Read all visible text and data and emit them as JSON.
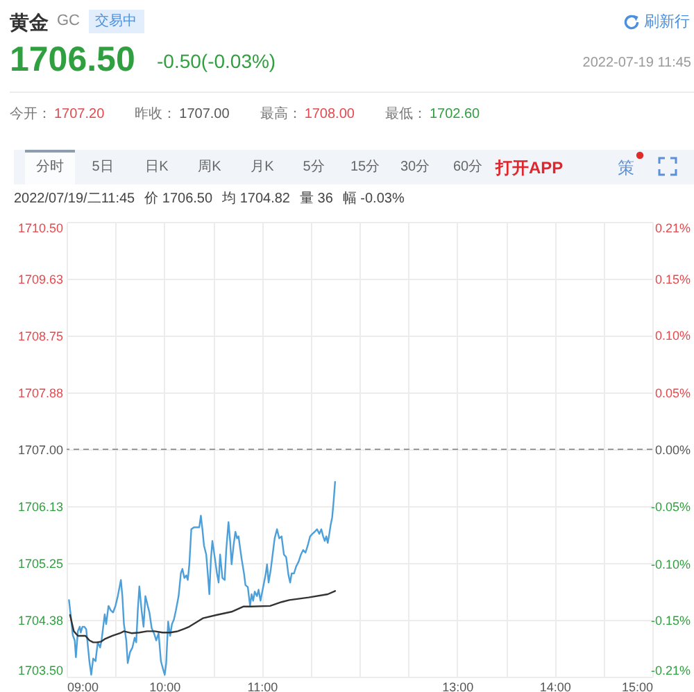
{
  "chart_data": {
    "type": "line",
    "title": "黄金",
    "annotations": [
      "GC",
      "交易中",
      "刷新行",
      "1706.50",
      "-0.50(-0.03%)",
      "2022-07-19 11:45",
      "今开：",
      "1707.20",
      "昨收：",
      "1707.00",
      "最高：",
      "1708.00",
      "最低：",
      "1702.60",
      "分时",
      "5日",
      "日K",
      "周K",
      "月K",
      "5分",
      "15分",
      "30分",
      "60分",
      "打开APP",
      "策",
      "2022/07/19/二11:45",
      "价 1706.50",
      "均 1704.82",
      "量 36",
      "幅 -0.03%"
    ],
    "xlim": [
      9,
      15
    ],
    "xticks": [
      {
        "value": 9,
        "label": "09:00"
      },
      {
        "value": 9.5,
        "label": null
      },
      {
        "value": 10,
        "label": "10:00"
      },
      {
        "value": 10.5,
        "label": null
      },
      {
        "value": 11,
        "label": "11:00"
      },
      {
        "value": 11.5,
        "label": null
      },
      {
        "value": 12,
        "label": null
      },
      {
        "value": 12.5,
        "label": null
      },
      {
        "value": 13,
        "label": "13:00"
      },
      {
        "value": 13.5,
        "label": null
      },
      {
        "value": 14,
        "label": "14:00"
      },
      {
        "value": 14.5,
        "label": null
      },
      {
        "value": 15,
        "label": "15:00"
      }
    ],
    "ylim": [
      1703.5,
      1710.5
    ],
    "yticks": [
      {
        "value": 1710.5,
        "label": "1710.50"
      },
      {
        "value": 1709.625,
        "label": "1709.63"
      },
      1708.75,
      {
        "value": 1707.875,
        "label": "1707.88"
      },
      {
        "value": 1707,
        "label": "1707.00"
      },
      {
        "value": 1706.125,
        "label": "1706.13"
      },
      1705.25,
      {
        "value": 1704.375,
        "label": "1704.38"
      },
      {
        "value": 1703.5,
        "label": "1703.50"
      }
    ],
    "y2lim": [
      -0.205,
      0.205
    ],
    "y2ticks": [
      {
        "value": 0.205,
        "label": "0.21%"
      },
      {
        "value": 0.154,
        "label": "0.15%"
      },
      {
        "value": 0.103,
        "label": "0.10%"
      },
      {
        "value": 0.051,
        "label": "0.05%"
      },
      {
        "value": 0,
        "label": "0.00%"
      },
      {
        "value": -0.051,
        "label": "-0.05%"
      },
      {
        "value": -0.103,
        "label": "-0.10%"
      },
      {
        "value": -0.154,
        "label": "-0.15%"
      },
      {
        "value": -0.205,
        "label": "-0.21%"
      }
    ],
    "ref_lines": [
      {
        "axis": "y2",
        "value": 0,
        "color": "#9a9a9a",
        "line_style": "dashed"
      }
    ],
    "grid": true,
    "series": [
      {
        "color": "#4d9fd9",
        "x": [
          9.024,
          9.044,
          9.063,
          9.083,
          9.095,
          9.115,
          9.134,
          9.145,
          9.162,
          9.181,
          9.201,
          9.233,
          9.252,
          9.272,
          9.296,
          9.319,
          9.343,
          9.358,
          9.39,
          9.405,
          9.429,
          9.453,
          9.476,
          9.5,
          9.524,
          9.556,
          9.571,
          9.587,
          9.611,
          9.626,
          9.65,
          9.674,
          9.697,
          9.713,
          9.729,
          9.745,
          9.768,
          9.788,
          9.807,
          9.831,
          9.848,
          9.871,
          9.895,
          9.918,
          9.942,
          9.966,
          9.989,
          10.005,
          10.02,
          10.04,
          10.06,
          10.079,
          10.099,
          10.119,
          10.147,
          10.17,
          10.186,
          10.206,
          10.226,
          10.241,
          10.257,
          10.277,
          10.304,
          10.359,
          10.375,
          10.391,
          10.407,
          10.43,
          10.446,
          10.462,
          10.478,
          10.493,
          10.517,
          10.54,
          10.557,
          10.572,
          10.596,
          10.619,
          10.635,
          10.658,
          10.675,
          10.69,
          10.71,
          10.729,
          10.746,
          10.761,
          10.777,
          10.793,
          10.817,
          10.832,
          10.856,
          10.879,
          10.895,
          10.911,
          10.927,
          10.95,
          10.966,
          10.986,
          11.013,
          11.037,
          11.053,
          11.069,
          11.092,
          11.116,
          11.131,
          11.155,
          11.178,
          11.202,
          11.226,
          11.249,
          11.273,
          11.29,
          11.305,
          11.329,
          11.352,
          11.376,
          11.4,
          11.423,
          11.447,
          11.47,
          11.494,
          11.518,
          11.541,
          11.565,
          11.589,
          11.609,
          11.628,
          11.644,
          11.66,
          11.675,
          11.691,
          11.705,
          11.72,
          11.735,
          11.75
        ],
        "values": [
          1704.68,
          1704.42,
          1704.14,
          1704.06,
          1703.8,
          1704.2,
          1704.27,
          1704.18,
          1704.27,
          1704.27,
          1704.23,
          1703.74,
          1703.53,
          1703.78,
          1703.74,
          1704.03,
          1703.95,
          1704.06,
          1704.46,
          1704.31,
          1704.59,
          1704.52,
          1704.49,
          1704.59,
          1704.74,
          1704.99,
          1704.74,
          1704.31,
          1704.06,
          1703.71,
          1703.88,
          1703.95,
          1704.1,
          1704.03,
          1704.52,
          1704.89,
          1704.52,
          1704.27,
          1704.74,
          1704.59,
          1704.49,
          1704.25,
          1704.17,
          1704.06,
          1704.17,
          1703.74,
          1703.61,
          1703.53,
          1703.71,
          1704.35,
          1704.13,
          1704.31,
          1704.38,
          1704.52,
          1704.74,
          1705.09,
          1705.16,
          1705.02,
          1705.06,
          1704.99,
          1705.23,
          1705.77,
          1705.8,
          1705.8,
          1705.98,
          1705.77,
          1705.52,
          1705.38,
          1705.09,
          1704.77,
          1705.31,
          1705.59,
          1705.34,
          1705.09,
          1704.95,
          1705.38,
          1705.02,
          1704.99,
          1705.45,
          1705.88,
          1705.59,
          1705.23,
          1705.52,
          1705.73,
          1705.63,
          1705.66,
          1705.48,
          1705.31,
          1705.09,
          1704.91,
          1704.88,
          1704.59,
          1704.77,
          1704.67,
          1704.81,
          1704.74,
          1704.84,
          1704.67,
          1704.88,
          1705.06,
          1705.23,
          1704.95,
          1705.16,
          1705.45,
          1705.63,
          1705.77,
          1705.63,
          1705.66,
          1705.38,
          1705.34,
          1705.06,
          1704.95,
          1705.09,
          1705.09,
          1705.2,
          1705.27,
          1705.38,
          1705.45,
          1705.41,
          1705.52,
          1705.66,
          1705.7,
          1705.73,
          1705.77,
          1705.7,
          1705.77,
          1705.66,
          1705.59,
          1705.66,
          1705.56,
          1705.7,
          1705.84,
          1705.95,
          1706.2,
          1706.5
        ]
      },
      {
        "color": "#333333",
        "x": [
          9.035,
          9.074,
          9.115,
          9.154,
          9.193,
          9.233,
          9.272,
          9.311,
          9.351,
          9.39,
          9.469,
          9.547,
          9.587,
          9.665,
          9.745,
          9.824,
          9.902,
          9.981,
          10.06,
          10.138,
          10.209,
          10.256,
          10.395,
          10.533,
          10.69,
          10.809,
          10.888,
          11.084,
          11.202,
          11.281,
          11.479,
          11.675,
          11.75
        ],
        "values": [
          1704.45,
          1704.2,
          1704.13,
          1704.13,
          1704.13,
          1704.06,
          1704.03,
          1704.03,
          1704.04,
          1704.08,
          1704.13,
          1704.17,
          1704.2,
          1704.17,
          1704.18,
          1704.2,
          1704.2,
          1704.18,
          1704.18,
          1704.2,
          1704.24,
          1704.27,
          1704.4,
          1704.45,
          1704.5,
          1704.58,
          1704.58,
          1704.59,
          1704.65,
          1704.68,
          1704.72,
          1704.77,
          1704.82
        ]
      }
    ]
  }
}
